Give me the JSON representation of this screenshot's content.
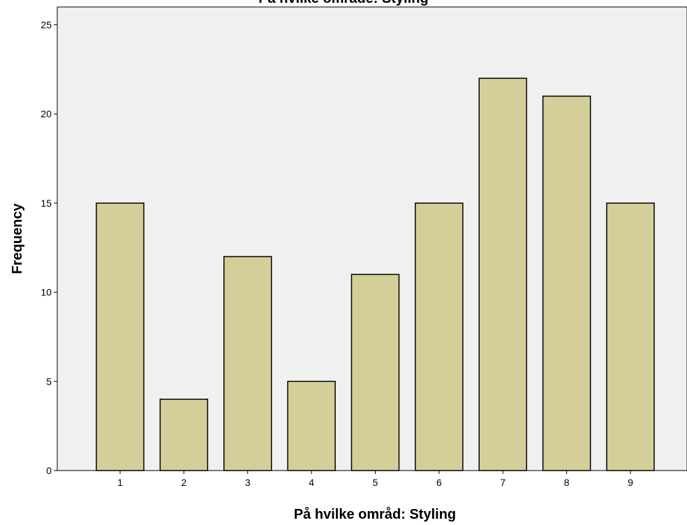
{
  "chart_data": {
    "type": "bar",
    "title": "På hvilke område: Styling",
    "xlabel": "På hvilke områd: Styling",
    "ylabel": "Frequency",
    "categories": [
      "1",
      "2",
      "3",
      "4",
      "5",
      "6",
      "7",
      "8",
      "9"
    ],
    "values": [
      15,
      4,
      12,
      5,
      11,
      15,
      22,
      21,
      15
    ],
    "ylim": [
      0,
      26
    ],
    "yticks": [
      "0",
      "5",
      "10",
      "15",
      "20",
      "25"
    ],
    "grid": false,
    "legend": "none",
    "colors": {
      "bar_fill": "#d4cf98",
      "bar_stroke": "#000000",
      "plot_background": "#f0f0f0"
    }
  }
}
